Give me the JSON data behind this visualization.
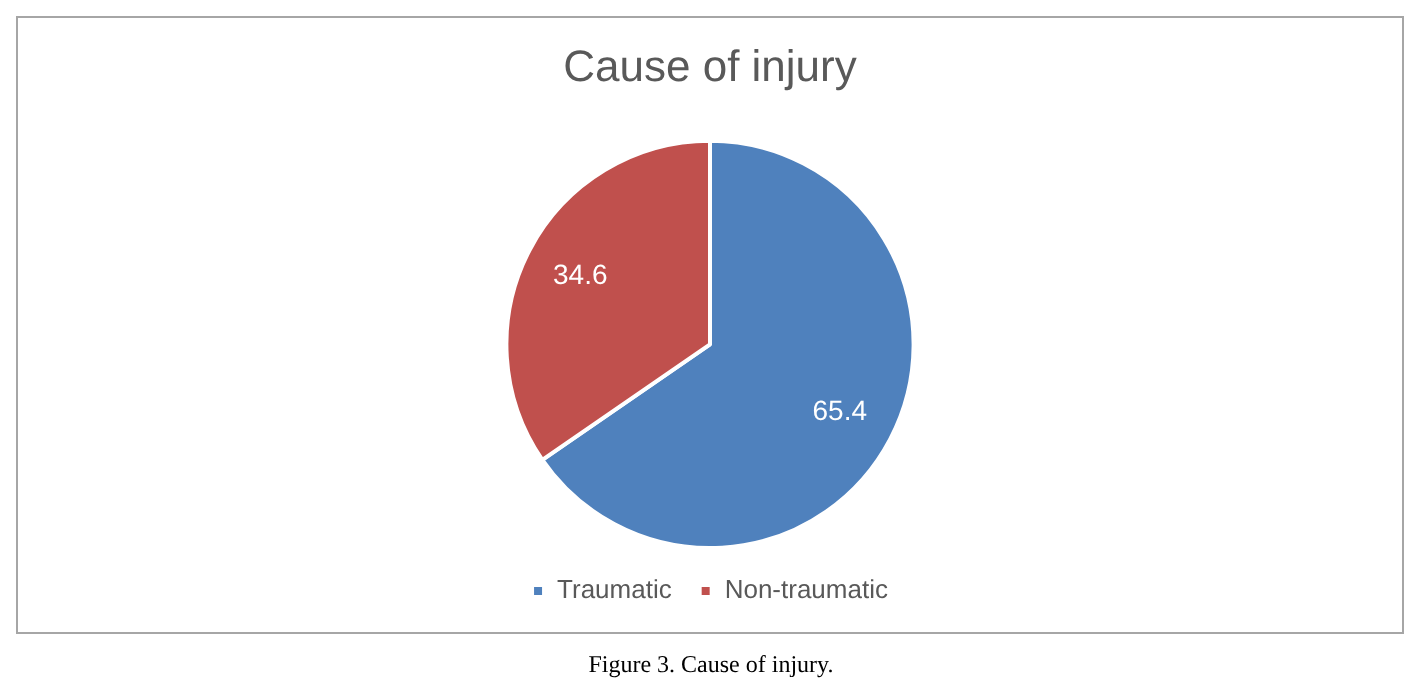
{
  "chart_data": {
    "type": "pie",
    "title": "Cause of injury",
    "categories": [
      "Traumatic",
      "Non-traumatic"
    ],
    "values": [
      65.4,
      34.6
    ],
    "colors": [
      "#4f81bd",
      "#c0504d"
    ],
    "data_labels": true,
    "legend": "bottom",
    "annotations": [
      "Figure 3. Cause of injury."
    ]
  }
}
